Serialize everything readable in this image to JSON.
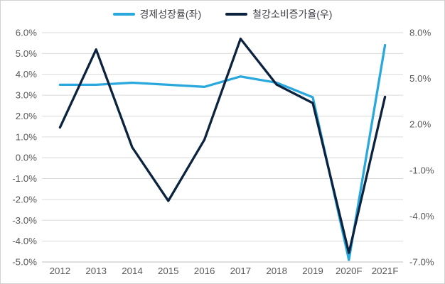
{
  "legend": {
    "items": [
      {
        "label": "경제성장률(좌)",
        "color": "#29A8DD"
      },
      {
        "label": "철강소비증가율(우)",
        "color": "#0C2340"
      }
    ]
  },
  "chart_data": {
    "type": "line",
    "title": "",
    "categories": [
      "2012",
      "2013",
      "2014",
      "2015",
      "2016",
      "2017",
      "2018",
      "2019",
      "2020F",
      "2021F"
    ],
    "series": [
      {
        "name": "경제성장률(좌)",
        "axis": "left",
        "color": "#29A8DD",
        "values": [
          3.5,
          3.5,
          3.6,
          3.5,
          3.4,
          3.9,
          3.6,
          2.9,
          -4.9,
          5.4
        ]
      },
      {
        "name": "철강소비증가율(우)",
        "axis": "right",
        "color": "#0C2340",
        "values": [
          1.8,
          6.9,
          0.5,
          -3.0,
          1.0,
          7.6,
          4.6,
          3.4,
          -6.4,
          3.8
        ]
      }
    ],
    "left_axis": {
      "min": -5,
      "max": 6,
      "tick_step": 1,
      "tick_labels": [
        "6.0%",
        "5.0%",
        "4.0%",
        "3.0%",
        "2.0%",
        "1.0%",
        "0.0%",
        "-1.0%",
        "-2.0%",
        "-3.0%",
        "-4.0%",
        "-5.0%"
      ]
    },
    "right_axis": {
      "min": -7,
      "max": 8,
      "tick_step": 3,
      "tick_labels": [
        "8.0%",
        "5.0%",
        "2.0%",
        "-1.0%",
        "-4.0%",
        "-7.0%"
      ]
    },
    "grid": true,
    "legend_position": "top",
    "colors": {
      "gridline": "#D9D9D9",
      "axis_line": "#BFBFBF",
      "tick_label": "#595959"
    }
  }
}
